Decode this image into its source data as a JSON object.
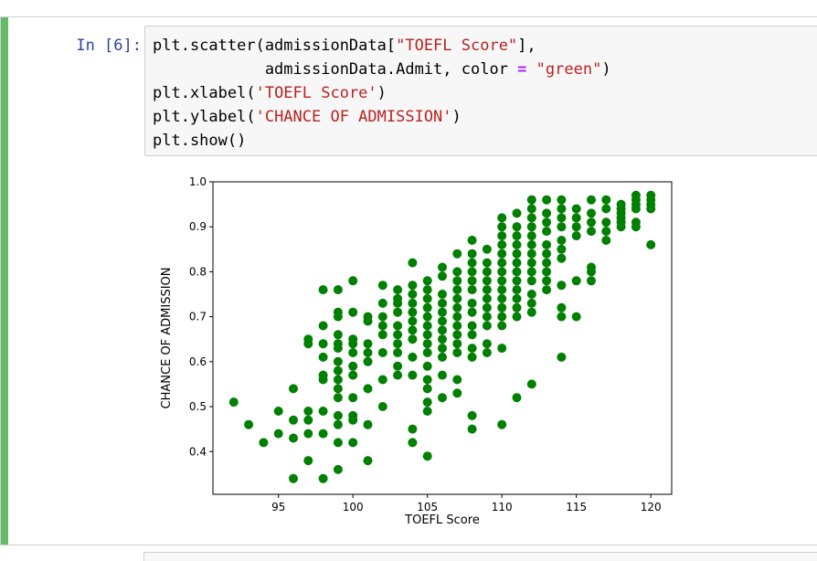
{
  "cell": {
    "prompt": "In [6]:",
    "code": {
      "line1_a": "plt.scatter(admissionData[",
      "line1_str": "\"TOEFL Score\"",
      "line1_b": "],",
      "line2_indent": "            admissionData.Admit, color ",
      "line2_op": "=",
      "line2_space": " ",
      "line2_str": "\"green\"",
      "line2_b": ")",
      "line3_a": "plt.xlabel(",
      "line3_str": "'TOEFL Score'",
      "line3_b": ")",
      "line4_a": "plt.ylabel(",
      "line4_str": "'CHANCE OF ADMISSION'",
      "line4_b": ")",
      "line5": "plt.show()"
    }
  },
  "colors": {
    "marker": "#008000",
    "cell_bar": "#66bb6a",
    "prompt": "#303f9f",
    "string": "#ba2121"
  },
  "chart_data": {
    "type": "scatter",
    "xlabel": "TOEFL Score",
    "ylabel": "CHANCE OF ADMISSION",
    "xlim": [
      90.6,
      121.4
    ],
    "ylim": [
      0.305,
      1.0
    ],
    "xticks": [
      95,
      100,
      105,
      110,
      115,
      120
    ],
    "xtick_labels": [
      "95",
      "100",
      "105",
      "110",
      "115",
      "120"
    ],
    "yticks": [
      0.4,
      0.5,
      0.6,
      0.7,
      0.8,
      0.9,
      1.0
    ],
    "ytick_labels": [
      "0.4",
      "0.5",
      "0.6",
      "0.7",
      "0.8",
      "0.9",
      "1.0"
    ],
    "grid": false,
    "legend": "none",
    "points": [
      [
        92,
        0.51
      ],
      [
        93,
        0.46
      ],
      [
        94,
        0.42
      ],
      [
        95,
        0.44
      ],
      [
        95,
        0.49
      ],
      [
        96,
        0.34
      ],
      [
        96,
        0.43
      ],
      [
        96,
        0.47
      ],
      [
        96,
        0.54
      ],
      [
        97,
        0.38
      ],
      [
        97,
        0.44
      ],
      [
        97,
        0.47
      ],
      [
        97,
        0.49
      ],
      [
        97,
        0.64
      ],
      [
        97,
        0.65
      ],
      [
        98,
        0.34
      ],
      [
        98,
        0.44
      ],
      [
        98,
        0.49
      ],
      [
        98,
        0.56
      ],
      [
        98,
        0.57
      ],
      [
        98,
        0.61
      ],
      [
        98,
        0.64
      ],
      [
        98,
        0.68
      ],
      [
        98,
        0.76
      ],
      [
        99,
        0.36
      ],
      [
        99,
        0.42
      ],
      [
        99,
        0.46
      ],
      [
        99,
        0.48
      ],
      [
        99,
        0.52
      ],
      [
        99,
        0.54
      ],
      [
        99,
        0.56
      ],
      [
        99,
        0.58
      ],
      [
        99,
        0.6
      ],
      [
        99,
        0.63
      ],
      [
        99,
        0.64
      ],
      [
        99,
        0.66
      ],
      [
        99,
        0.7
      ],
      [
        99,
        0.71
      ],
      [
        99,
        0.76
      ],
      [
        100,
        0.42
      ],
      [
        100,
        0.47
      ],
      [
        100,
        0.48
      ],
      [
        100,
        0.52
      ],
      [
        100,
        0.57
      ],
      [
        100,
        0.59
      ],
      [
        100,
        0.62
      ],
      [
        100,
        0.64
      ],
      [
        100,
        0.65
      ],
      [
        100,
        0.71
      ],
      [
        100,
        0.78
      ],
      [
        101,
        0.38
      ],
      [
        101,
        0.46
      ],
      [
        101,
        0.54
      ],
      [
        101,
        0.6
      ],
      [
        101,
        0.62
      ],
      [
        101,
        0.64
      ],
      [
        101,
        0.69
      ],
      [
        101,
        0.7
      ],
      [
        102,
        0.5
      ],
      [
        102,
        0.56
      ],
      [
        102,
        0.62
      ],
      [
        102,
        0.66
      ],
      [
        102,
        0.68
      ],
      [
        102,
        0.7
      ],
      [
        102,
        0.73
      ],
      [
        102,
        0.77
      ],
      [
        103,
        0.57
      ],
      [
        103,
        0.59
      ],
      [
        103,
        0.62
      ],
      [
        103,
        0.64
      ],
      [
        103,
        0.66
      ],
      [
        103,
        0.68
      ],
      [
        103,
        0.71
      ],
      [
        103,
        0.73
      ],
      [
        103,
        0.74
      ],
      [
        103,
        0.76
      ],
      [
        104,
        0.42
      ],
      [
        104,
        0.45
      ],
      [
        104,
        0.57
      ],
      [
        104,
        0.61
      ],
      [
        104,
        0.65
      ],
      [
        104,
        0.67
      ],
      [
        104,
        0.69
      ],
      [
        104,
        0.71
      ],
      [
        104,
        0.73
      ],
      [
        104,
        0.75
      ],
      [
        104,
        0.77
      ],
      [
        104,
        0.82
      ],
      [
        105,
        0.39
      ],
      [
        105,
        0.49
      ],
      [
        105,
        0.51
      ],
      [
        105,
        0.54
      ],
      [
        105,
        0.56
      ],
      [
        105,
        0.59
      ],
      [
        105,
        0.62
      ],
      [
        105,
        0.64
      ],
      [
        105,
        0.66
      ],
      [
        105,
        0.68
      ],
      [
        105,
        0.7
      ],
      [
        105,
        0.72
      ],
      [
        105,
        0.74
      ],
      [
        105,
        0.76
      ],
      [
        105,
        0.78
      ],
      [
        106,
        0.52
      ],
      [
        106,
        0.57
      ],
      [
        106,
        0.61
      ],
      [
        106,
        0.63
      ],
      [
        106,
        0.65
      ],
      [
        106,
        0.67
      ],
      [
        106,
        0.69
      ],
      [
        106,
        0.71
      ],
      [
        106,
        0.73
      ],
      [
        106,
        0.75
      ],
      [
        106,
        0.79
      ],
      [
        106,
        0.81
      ],
      [
        107,
        0.53
      ],
      [
        107,
        0.56
      ],
      [
        107,
        0.62
      ],
      [
        107,
        0.64
      ],
      [
        107,
        0.66
      ],
      [
        107,
        0.68
      ],
      [
        107,
        0.7
      ],
      [
        107,
        0.72
      ],
      [
        107,
        0.74
      ],
      [
        107,
        0.76
      ],
      [
        107,
        0.78
      ],
      [
        107,
        0.8
      ],
      [
        107,
        0.84
      ],
      [
        108,
        0.45
      ],
      [
        108,
        0.48
      ],
      [
        108,
        0.61
      ],
      [
        108,
        0.63
      ],
      [
        108,
        0.66
      ],
      [
        108,
        0.68
      ],
      [
        108,
        0.71
      ],
      [
        108,
        0.73
      ],
      [
        108,
        0.76
      ],
      [
        108,
        0.78
      ],
      [
        108,
        0.8
      ],
      [
        108,
        0.82
      ],
      [
        108,
        0.84
      ],
      [
        108,
        0.87
      ],
      [
        109,
        0.62
      ],
      [
        109,
        0.64
      ],
      [
        109,
        0.68
      ],
      [
        109,
        0.7
      ],
      [
        109,
        0.72
      ],
      [
        109,
        0.74
      ],
      [
        109,
        0.76
      ],
      [
        109,
        0.78
      ],
      [
        109,
        0.8
      ],
      [
        109,
        0.82
      ],
      [
        109,
        0.85
      ],
      [
        110,
        0.46
      ],
      [
        110,
        0.63
      ],
      [
        110,
        0.68
      ],
      [
        110,
        0.7
      ],
      [
        110,
        0.72
      ],
      [
        110,
        0.74
      ],
      [
        110,
        0.76
      ],
      [
        110,
        0.78
      ],
      [
        110,
        0.8
      ],
      [
        110,
        0.82
      ],
      [
        110,
        0.84
      ],
      [
        110,
        0.86
      ],
      [
        110,
        0.88
      ],
      [
        110,
        0.9
      ],
      [
        110,
        0.92
      ],
      [
        111,
        0.52
      ],
      [
        111,
        0.7
      ],
      [
        111,
        0.72
      ],
      [
        111,
        0.74
      ],
      [
        111,
        0.76
      ],
      [
        111,
        0.78
      ],
      [
        111,
        0.8
      ],
      [
        111,
        0.82
      ],
      [
        111,
        0.84
      ],
      [
        111,
        0.86
      ],
      [
        111,
        0.88
      ],
      [
        111,
        0.9
      ],
      [
        111,
        0.93
      ],
      [
        112,
        0.55
      ],
      [
        112,
        0.71
      ],
      [
        112,
        0.73
      ],
      [
        112,
        0.75
      ],
      [
        112,
        0.78
      ],
      [
        112,
        0.8
      ],
      [
        112,
        0.82
      ],
      [
        112,
        0.84
      ],
      [
        112,
        0.86
      ],
      [
        112,
        0.88
      ],
      [
        112,
        0.9
      ],
      [
        112,
        0.92
      ],
      [
        112,
        0.94
      ],
      [
        112,
        0.96
      ],
      [
        113,
        0.76
      ],
      [
        113,
        0.78
      ],
      [
        113,
        0.8
      ],
      [
        113,
        0.82
      ],
      [
        113,
        0.84
      ],
      [
        113,
        0.86
      ],
      [
        113,
        0.89
      ],
      [
        113,
        0.91
      ],
      [
        113,
        0.93
      ],
      [
        113,
        0.96
      ],
      [
        114,
        0.61
      ],
      [
        114,
        0.7
      ],
      [
        114,
        0.72
      ],
      [
        114,
        0.77
      ],
      [
        114,
        0.83
      ],
      [
        114,
        0.85
      ],
      [
        114,
        0.87
      ],
      [
        114,
        0.9
      ],
      [
        114,
        0.92
      ],
      [
        114,
        0.94
      ],
      [
        114,
        0.96
      ],
      [
        115,
        0.7
      ],
      [
        115,
        0.78
      ],
      [
        115,
        0.88
      ],
      [
        115,
        0.9
      ],
      [
        115,
        0.92
      ],
      [
        115,
        0.94
      ],
      [
        116,
        0.78
      ],
      [
        116,
        0.8
      ],
      [
        116,
        0.81
      ],
      [
        116,
        0.89
      ],
      [
        116,
        0.91
      ],
      [
        116,
        0.93
      ],
      [
        116,
        0.96
      ],
      [
        117,
        0.87
      ],
      [
        117,
        0.89
      ],
      [
        117,
        0.91
      ],
      [
        117,
        0.94
      ],
      [
        117,
        0.96
      ],
      [
        118,
        0.9
      ],
      [
        118,
        0.91
      ],
      [
        118,
        0.92
      ],
      [
        118,
        0.93
      ],
      [
        118,
        0.94
      ],
      [
        118,
        0.95
      ],
      [
        119,
        0.9
      ],
      [
        119,
        0.91
      ],
      [
        119,
        0.94
      ],
      [
        119,
        0.95
      ],
      [
        119,
        0.96
      ],
      [
        119,
        0.97
      ],
      [
        120,
        0.86
      ],
      [
        120,
        0.94
      ],
      [
        120,
        0.95
      ],
      [
        120,
        0.96
      ],
      [
        120,
        0.97
      ]
    ]
  }
}
